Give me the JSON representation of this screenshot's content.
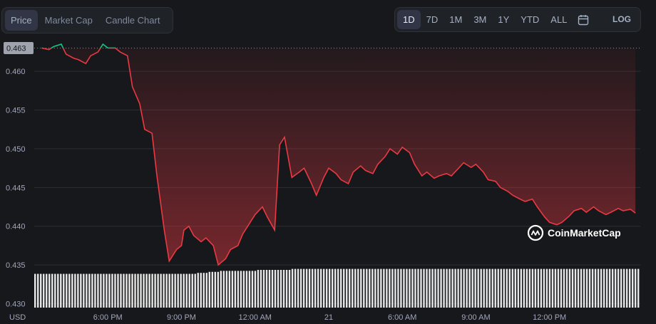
{
  "tabs": [
    {
      "label": "Price",
      "active": true
    },
    {
      "label": "Market Cap",
      "active": false
    },
    {
      "label": "Candle Chart",
      "active": false
    }
  ],
  "ranges": [
    {
      "label": "1D",
      "active": true
    },
    {
      "label": "7D",
      "active": false
    },
    {
      "label": "1M",
      "active": false
    },
    {
      "label": "3M",
      "active": false
    },
    {
      "label": "1Y",
      "active": false
    },
    {
      "label": "YTD",
      "active": false
    },
    {
      "label": "ALL",
      "active": false
    }
  ],
  "calendar_icon": "calendar-icon",
  "log_label": "LOG",
  "watermark": "CoinMarketCap",
  "currency_label": "USD",
  "colors": {
    "up": "#16c784",
    "down": "#ea3943",
    "background": "#17181b",
    "grid": "#2b2d33",
    "volume": "#e8e8e8"
  },
  "chart_data": {
    "type": "line",
    "y_ticks": [
      "0.460",
      "0.455",
      "0.450",
      "0.445",
      "0.440",
      "0.435",
      "0.430"
    ],
    "x_ticks": [
      "6:00 PM",
      "9:00 PM",
      "12:00 AM",
      "21",
      "6:00 AM",
      "9:00 AM",
      "12:00 PM"
    ],
    "ylim": [
      0.4295,
      0.4635
    ],
    "open_price": 0.463,
    "open_price_label": "0.463",
    "x": [
      15.3,
      15.6,
      15.8,
      16.1,
      16.3,
      16.6,
      16.8,
      17.1,
      17.3,
      17.6,
      17.8,
      18.0,
      18.3,
      18.5,
      18.8,
      19.0,
      19.3,
      19.5,
      19.8,
      20.0,
      20.3,
      20.5,
      20.8,
      21.0,
      21.1,
      21.3,
      21.5,
      21.8,
      22.0,
      22.3,
      22.5,
      22.8,
      23.0,
      23.3,
      23.5,
      23.8,
      24.0,
      24.3,
      24.5,
      24.8,
      25.0,
      25.2,
      25.5,
      25.8,
      26.0,
      26.3,
      26.5,
      26.8,
      27.0,
      27.3,
      27.5,
      27.8,
      28.0,
      28.3,
      28.5,
      28.8,
      29.0,
      29.3,
      29.5,
      29.8,
      30.0,
      30.3,
      30.5,
      30.8,
      31.0,
      31.3,
      31.5,
      31.8,
      32.0,
      32.3,
      32.5,
      32.8,
      33.0,
      33.3,
      33.5,
      33.8,
      34.0,
      34.3,
      34.5,
      34.8,
      35.0,
      35.3,
      35.5,
      35.8,
      36.0,
      36.3,
      36.5,
      36.8,
      37.0,
      37.3,
      37.5,
      37.8,
      38.0,
      38.3,
      38.5,
      38.8,
      39.0,
      39.3,
      39.5
    ],
    "y": [
      0.463,
      0.4628,
      0.4632,
      0.4635,
      0.4622,
      0.4617,
      0.4615,
      0.461,
      0.462,
      0.4625,
      0.4635,
      0.463,
      0.463,
      0.4625,
      0.462,
      0.458,
      0.4558,
      0.4525,
      0.452,
      0.4465,
      0.4395,
      0.4355,
      0.437,
      0.4375,
      0.4395,
      0.44,
      0.4388,
      0.438,
      0.4385,
      0.4375,
      0.435,
      0.4358,
      0.437,
      0.4375,
      0.439,
      0.4405,
      0.4415,
      0.4425,
      0.4412,
      0.4395,
      0.4505,
      0.4515,
      0.4463,
      0.447,
      0.4475,
      0.4455,
      0.444,
      0.4463,
      0.4475,
      0.4468,
      0.446,
      0.4455,
      0.447,
      0.4478,
      0.4472,
      0.4468,
      0.448,
      0.449,
      0.45,
      0.4493,
      0.4502,
      0.4495,
      0.448,
      0.4465,
      0.447,
      0.4462,
      0.4465,
      0.4468,
      0.4465,
      0.4475,
      0.4482,
      0.4476,
      0.448,
      0.447,
      0.446,
      0.4458,
      0.445,
      0.4445,
      0.444,
      0.4435,
      0.4432,
      0.4435,
      0.4425,
      0.4412,
      0.4405,
      0.4402,
      0.4405,
      0.4413,
      0.442,
      0.4423,
      0.4418,
      0.4425,
      0.442,
      0.4415,
      0.4418,
      0.4423,
      0.442,
      0.4422,
      0.4417
    ],
    "xlim": [
      15.0,
      39.7
    ],
    "volume_heights": [
      0.34,
      0.34,
      0.34,
      0.34,
      0.34,
      0.34,
      0.34,
      0.34,
      0.34,
      0.34,
      0.34,
      0.34,
      0.34,
      0.34,
      0.35,
      0.36,
      0.37,
      0.37,
      0.37,
      0.38,
      0.38,
      0.38,
      0.39,
      0.39,
      0.39,
      0.39,
      0.39,
      0.39,
      0.39,
      0.39,
      0.39,
      0.39,
      0.39,
      0.39,
      0.39,
      0.39,
      0.39,
      0.39,
      0.39,
      0.39,
      0.39,
      0.39,
      0.39,
      0.39,
      0.39,
      0.39,
      0.39,
      0.39,
      0.39,
      0.39,
      0.39,
      0.39
    ]
  }
}
